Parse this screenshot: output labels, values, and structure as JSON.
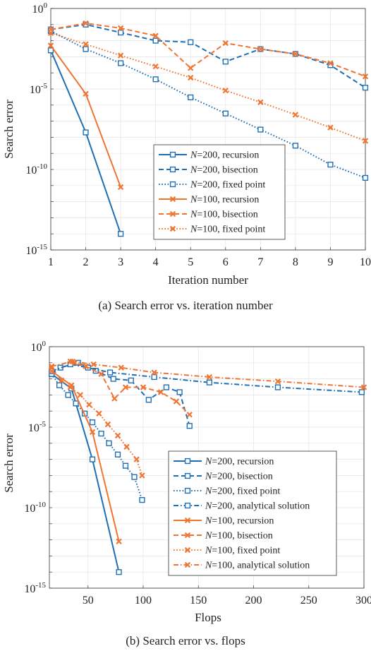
{
  "colors": {
    "n200": "#1f6fb5",
    "n100": "#f07533",
    "grid": "#e4e4e4"
  },
  "chart_data": [
    {
      "type": "line",
      "caption": "(a)  Search error vs. iteration number",
      "xlabel": "Iteration number",
      "ylabel": "Search error",
      "y_scale": "log",
      "xlim": [
        1,
        10
      ],
      "ylim_exp": [
        -15,
        0
      ],
      "x_ticks": [
        "1",
        "2",
        "3",
        "4",
        "5",
        "6",
        "7",
        "8",
        "9",
        "10"
      ],
      "y_ticks": [
        {
          "base": "10",
          "exp": "0"
        },
        {
          "base": "10",
          "exp": "-5"
        },
        {
          "base": "10",
          "exp": "-10"
        },
        {
          "base": "10",
          "exp": "-15"
        }
      ],
      "grid": true,
      "legend_position": "inside-lower-right",
      "series": [
        {
          "name": "N=200, recursion",
          "var": "N",
          "rest": "=200, recursion",
          "group": "n200",
          "dash": "solid",
          "marker": "square",
          "x": [
            1,
            2,
            3
          ],
          "y": [
            0.0025,
            2e-08,
            1e-14
          ]
        },
        {
          "name": "N=200, bisection",
          "var": "N",
          "rest": "=200, bisection",
          "group": "n200",
          "dash": "dashed",
          "marker": "square",
          "x": [
            1,
            2,
            3,
            4,
            5,
            6,
            7,
            8,
            9,
            10
          ],
          "y": [
            0.05,
            0.1,
            0.032,
            0.01,
            0.008,
            0.0005,
            0.003,
            0.0015,
            0.0003,
            1.2e-05
          ]
        },
        {
          "name": "N=200, fixed point",
          "var": "N",
          "rest": "=200, fixed point",
          "group": "n200",
          "dash": "dotted",
          "marker": "square",
          "x": [
            1,
            2,
            3,
            4,
            5,
            6,
            7,
            8,
            9,
            10
          ],
          "y": [
            0.04,
            0.003,
            0.0004,
            4e-05,
            3e-06,
            3e-07,
            3e-08,
            3e-09,
            2e-10,
            3e-11
          ]
        },
        {
          "name": "N=100, recursion",
          "var": "N",
          "rest": "=100, recursion",
          "group": "n100",
          "dash": "solid",
          "marker": "cross",
          "x": [
            1,
            2,
            3
          ],
          "y": [
            0.005,
            5e-06,
            8e-12
          ]
        },
        {
          "name": "N=100, bisection",
          "var": "N",
          "rest": "=100, bisection",
          "group": "n100",
          "dash": "dashed",
          "marker": "cross",
          "x": [
            1,
            2,
            3,
            4,
            5,
            6,
            7,
            8,
            9,
            10
          ],
          "y": [
            0.05,
            0.12,
            0.06,
            0.02,
            0.0002,
            0.007,
            0.003,
            0.0015,
            0.0004,
            6e-05
          ]
        },
        {
          "name": "N=100, fixed point",
          "var": "N",
          "rest": "=100, fixed point",
          "group": "n100",
          "dash": "dotted",
          "marker": "cross",
          "x": [
            1,
            2,
            3,
            4,
            5,
            6,
            7,
            8,
            9,
            10
          ],
          "y": [
            0.03,
            0.006,
            0.0012,
            0.00025,
            5e-05,
            8e-06,
            1.5e-06,
            2.5e-07,
            4e-08,
            6e-09
          ]
        }
      ]
    },
    {
      "type": "line",
      "caption": "(b)  Search error vs. flops",
      "xlabel": "Flops",
      "ylabel": "Search error",
      "y_scale": "log",
      "xlim": [
        15,
        300
      ],
      "ylim_exp": [
        -15,
        0
      ],
      "x_ticks": [
        "50",
        "100",
        "150",
        "200",
        "250",
        "300"
      ],
      "x_tick_values": [
        50,
        100,
        150,
        200,
        250,
        300
      ],
      "y_ticks": [
        {
          "base": "10",
          "exp": "0"
        },
        {
          "base": "10",
          "exp": "-5"
        },
        {
          "base": "10",
          "exp": "-10"
        },
        {
          "base": "10",
          "exp": "-15"
        }
      ],
      "grid": true,
      "legend_position": "inside-lower-right",
      "series": [
        {
          "name": "N=200, recursion",
          "var": "N",
          "rest": "=200, recursion",
          "group": "n200",
          "dash": "solid",
          "marker": "square",
          "x": [
            17,
            35,
            54,
            78
          ],
          "y": [
            0.02,
            0.0025,
            1e-07,
            1e-14
          ]
        },
        {
          "name": "N=200, bisection",
          "var": "N",
          "rest": "=200, bisection",
          "group": "n200",
          "dash": "dashed",
          "marker": "square",
          "x": [
            17,
            25,
            41,
            57,
            73,
            89,
            105,
            121,
            133,
            142
          ],
          "y": [
            0.02,
            0.05,
            0.1,
            0.032,
            0.01,
            0.008,
            0.0005,
            0.003,
            0.0015,
            1.2e-05
          ]
        },
        {
          "name": "N=200, fixed point",
          "var": "N",
          "rest": "=200, fixed point",
          "group": "n200",
          "dash": "dotted",
          "marker": "square",
          "x": [
            17,
            24,
            32,
            39,
            47,
            54,
            62,
            69,
            77,
            84,
            92,
            99
          ],
          "y": [
            0.02,
            0.004,
            0.001,
            0.0003,
            7e-05,
            2e-05,
            4e-06,
            1e-06,
            2e-07,
            4e-08,
            8e-09,
            3e-10
          ]
        },
        {
          "name": "N=200, analytical solution",
          "var": "N",
          "rest": "=200, analytical solution",
          "group": "n200",
          "dash": "dashdot",
          "marker": "square",
          "x": [
            17,
            34,
            50,
            70,
            110,
            160,
            222,
            298
          ],
          "y": [
            0.03,
            0.08,
            0.05,
            0.025,
            0.013,
            0.006,
            0.003,
            0.0015
          ]
        },
        {
          "name": "N=100, recursion",
          "var": "N",
          "rest": "=100, recursion",
          "group": "n100",
          "dash": "solid",
          "marker": "cross",
          "x": [
            17,
            35,
            54,
            78
          ],
          "y": [
            0.03,
            0.004,
            5e-06,
            8e-13
          ]
        },
        {
          "name": "N=100, bisection",
          "var": "N",
          "rest": "=100, bisection",
          "group": "n100",
          "dash": "dashed",
          "marker": "cross",
          "x": [
            34,
            38,
            48,
            62,
            74,
            84,
            100,
            116,
            130,
            142
          ],
          "y": [
            0.12,
            0.1,
            0.06,
            0.02,
            0.0006,
            0.003,
            0.003,
            0.0015,
            0.0004,
            6e-05
          ]
        },
        {
          "name": "N=100, fixed point",
          "var": "N",
          "rest": "=100, fixed point",
          "group": "n100",
          "dash": "dotted",
          "marker": "cross",
          "x": [
            17,
            26,
            34,
            43,
            51,
            60,
            68,
            77,
            85,
            94,
            99
          ],
          "y": [
            0.05,
            0.008,
            0.003,
            0.001,
            0.00025,
            7e-05,
            1.5e-05,
            3e-06,
            6e-07,
            1e-07,
            1e-08
          ]
        },
        {
          "name": "N=100, analytical solution",
          "var": "N",
          "rest": "=100, analytical solution",
          "group": "n100",
          "dash": "dashdot",
          "marker": "cross",
          "x": [
            17,
            36,
            55,
            80,
            110,
            160,
            222,
            300
          ],
          "y": [
            0.06,
            0.12,
            0.08,
            0.05,
            0.025,
            0.013,
            0.007,
            0.003
          ]
        }
      ]
    }
  ]
}
